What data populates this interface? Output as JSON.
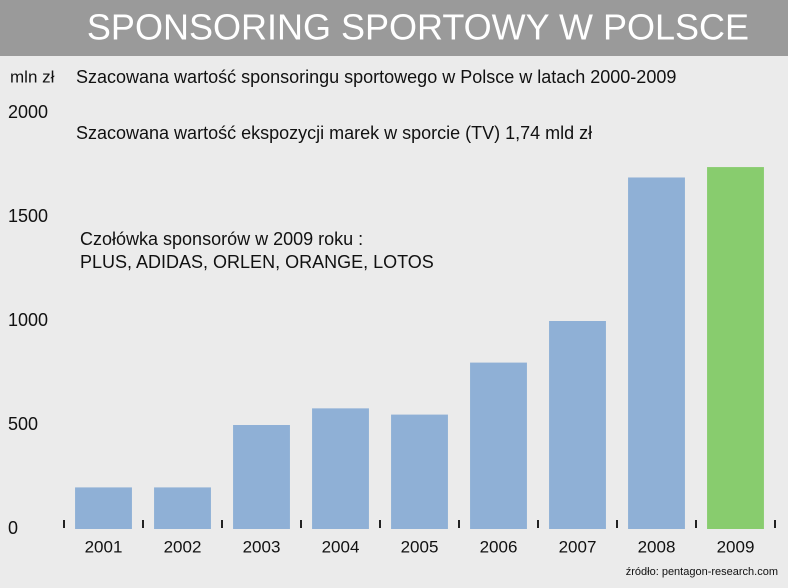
{
  "chart_data": {
    "type": "bar",
    "title": "SPONSORING SPORTOWY W POLSCE",
    "subtitle": "Szacowana wartość sponsoringu sportowego w Polsce w latach 2000-2009",
    "y_label": "mln zł",
    "annotations": [
      "Szacowana wartość ekspozycji marek w sporcie (TV) 1,74 mld zł",
      "Czołówka sponsorów w 2009 roku :",
      "PLUS, ADIDAS, ORLEN, ORANGE, LOTOS"
    ],
    "source": "źródło: pentagon-research.com",
    "categories": [
      "2001",
      "2002",
      "2003",
      "2004",
      "2005",
      "2006",
      "2007",
      "2008",
      "2009"
    ],
    "values": [
      200,
      200,
      500,
      580,
      550,
      800,
      1000,
      1690,
      1740
    ],
    "colors": [
      "#8fb0d6",
      "#8fb0d6",
      "#8fb0d6",
      "#8fb0d6",
      "#8fb0d6",
      "#8fb0d6",
      "#8fb0d6",
      "#8fb0d6",
      "#88cc6e"
    ],
    "ylim": [
      0,
      2000
    ],
    "yticks": [
      0,
      500,
      1000,
      1500,
      2000
    ],
    "grid": false
  }
}
